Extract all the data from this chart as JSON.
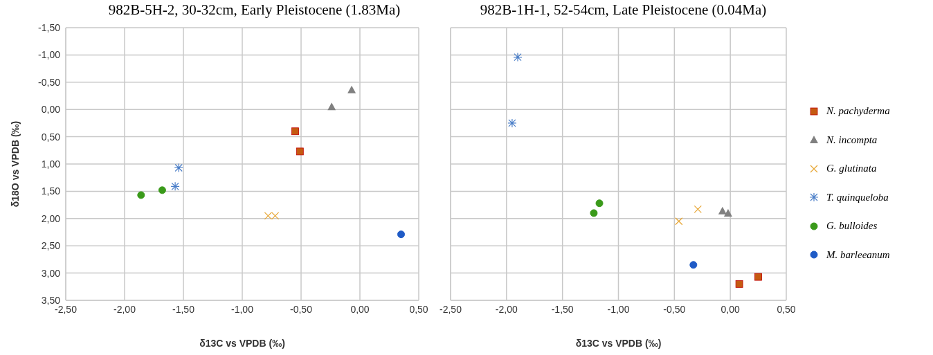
{
  "chart_data": [
    {
      "type": "scatter",
      "title": "982B-5H-2, 30-32cm, Early Pleistocene (1.83Ma)",
      "xlabel": "δ13C vs VPDB (‰)",
      "ylabel": "δ18O vs VPDB (‰)",
      "xlim": [
        -2.5,
        0.5
      ],
      "xticks": [
        {
          "value": -2.5,
          "label": "-2,50"
        },
        {
          "value": -2,
          "label": "-2,00"
        },
        {
          "value": -1.5,
          "label": "-1,50"
        },
        {
          "value": -1,
          "label": "-1,00"
        },
        {
          "value": -0.5,
          "label": "-0,50"
        },
        {
          "value": 0,
          "label": "0,00"
        },
        {
          "value": 0.5,
          "label": "0,50"
        }
      ],
      "ylim": [
        3.5,
        -1.5
      ],
      "yticks": [
        {
          "value": -1.5,
          "label": "-1,50"
        },
        {
          "value": -1,
          "label": "-1,00"
        },
        {
          "value": -0.5,
          "label": "-0,50"
        },
        {
          "value": 0,
          "label": "0,00"
        },
        {
          "value": 0.5,
          "label": "0,50"
        },
        {
          "value": 1,
          "label": "1,00"
        },
        {
          "value": 1.5,
          "label": "1,50"
        },
        {
          "value": 2,
          "label": "2,00"
        },
        {
          "value": 2.5,
          "label": "2,50"
        },
        {
          "value": 3,
          "label": "3,00"
        },
        {
          "value": 3.5,
          "label": "3,50"
        }
      ],
      "grid": true,
      "legend": "right",
      "series": [
        {
          "name": "N. pachyderma",
          "color": "#c55a11",
          "marker": "square",
          "x": [
            -0.55,
            -0.51
          ],
          "values": [
            0.4,
            0.77
          ]
        },
        {
          "name": "N. incompta",
          "color": "#808080",
          "marker": "triangle",
          "x": [
            -0.24,
            -0.07
          ],
          "values": [
            -0.05,
            -0.36
          ]
        },
        {
          "name": "G. glutinata",
          "color": "#e8a838",
          "marker": "cross",
          "x": [
            -0.78,
            -0.72
          ],
          "values": [
            1.95,
            1.95
          ]
        },
        {
          "name": "T. quinqueloba",
          "color": "#4a7ec8",
          "x": [
            -1.54,
            -1.57
          ],
          "values": [
            1.07,
            1.41
          ]
        },
        {
          "name": "G. bulloides",
          "color": "#3a9a1a",
          "marker": "circle",
          "x": [
            -1.86,
            -1.68
          ],
          "values": [
            1.57,
            1.48
          ]
        },
        {
          "name": "M. barleeanum",
          "color": "#1f5bc6",
          "marker": "circle",
          "x": [
            0.35
          ],
          "values": [
            2.29
          ]
        }
      ]
    },
    {
      "type": "scatter",
      "title": "982B-1H-1, 52-54cm, Late Pleistocene (0.04Ma)",
      "xlabel": "δ13C vs VPDB (‰)",
      "xlim": [
        -2.5,
        0.5
      ],
      "xticks": [
        {
          "value": -2.5,
          "label": "-2,50"
        },
        {
          "value": -2,
          "label": "-2,00"
        },
        {
          "value": -1.5,
          "label": "-1,50"
        },
        {
          "value": -1,
          "label": "-1,00"
        },
        {
          "value": -0.5,
          "label": "-0,50"
        },
        {
          "value": 0,
          "label": "0,00"
        },
        {
          "value": 0.5,
          "label": "0,50"
        }
      ],
      "ylim": [
        3.5,
        -1.5
      ],
      "yticks": [
        -1.5,
        -1,
        -0.5,
        0,
        0.5,
        1,
        1.5,
        2,
        2.5,
        3,
        3.5
      ],
      "tick_labels": "x",
      "grid": true,
      "series": [
        {
          "color": "#c55a11",
          "marker": "square",
          "x": [
            0.08,
            0.25
          ],
          "values": [
            3.2,
            3.07
          ]
        },
        {
          "color": "#808080",
          "marker": "triangle",
          "x": [
            -0.07,
            -0.02
          ],
          "values": [
            1.86,
            1.9
          ]
        },
        {
          "color": "#e8a838",
          "marker": "cross",
          "x": [
            -0.29,
            -0.46
          ],
          "values": [
            1.83,
            2.05
          ]
        },
        {
          "color": "#4a7ec8",
          "x": [
            -1.9,
            -1.95
          ],
          "values": [
            -0.96,
            0.25
          ]
        },
        {
          "color": "#3a9a1a",
          "marker": "circle",
          "x": [
            -1.17,
            -1.22
          ],
          "values": [
            1.72,
            1.9
          ]
        },
        {
          "color": "#1f5bc6",
          "marker": "circle",
          "x": [
            -0.33
          ],
          "values": [
            2.85
          ]
        }
      ]
    }
  ]
}
